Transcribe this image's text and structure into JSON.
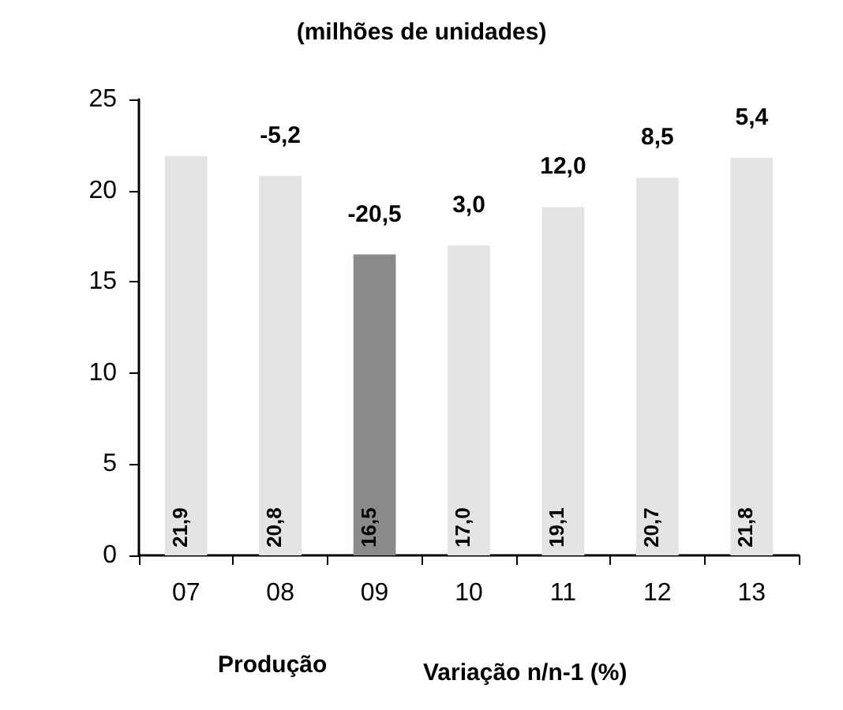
{
  "chart_data": {
    "type": "bar",
    "title": "(milhões de unidades)",
    "categories": [
      "07",
      "08",
      "09",
      "10",
      "11",
      "12",
      "13"
    ],
    "series": [
      {
        "name": "Produção",
        "colors": [
          "#e4e4e4",
          "#e4e4e4",
          "#8a8a8a",
          "#e4e4e4",
          "#e4e4e4",
          "#e4e4e4",
          "#e4e4e4"
        ],
        "values": [
          21.9,
          20.8,
          16.5,
          17.0,
          19.1,
          20.7,
          21.8
        ],
        "value_labels": [
          "21,9",
          "20,8",
          "16,5",
          "17,0",
          "19,1",
          "20,7",
          "21,8"
        ]
      }
    ],
    "annotations": [
      {
        "text": "-5,2",
        "x": "08",
        "y": 20.8
      },
      {
        "text": "-20,5",
        "x": "09",
        "y": 16.5
      },
      {
        "text": "3,0",
        "x": "10",
        "y": 17.0
      },
      {
        "text": "12,0",
        "x": "11",
        "y": 19.1
      },
      {
        "text": "8,5",
        "x": "12",
        "y": 20.7
      },
      {
        "text": "5,4",
        "x": "13",
        "y": 21.8
      },
      "Variação n/n-1 (%)"
    ],
    "ylim": [
      0,
      25
    ],
    "yticks": [
      0,
      5,
      10,
      15,
      20,
      25
    ],
    "grid": false,
    "legend": "bottom"
  }
}
